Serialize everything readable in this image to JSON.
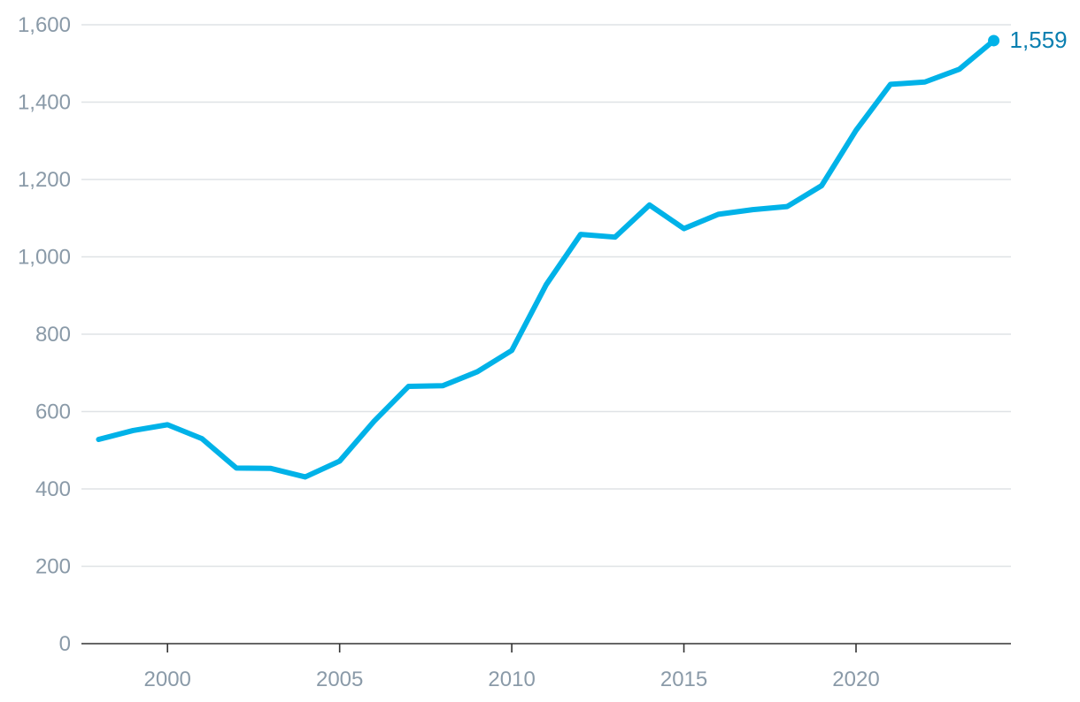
{
  "chart_data": {
    "type": "line",
    "title": "",
    "xlabel": "",
    "ylabel": "",
    "xlim": [
      1997.5,
      2024.5
    ],
    "ylim": [
      0,
      1600
    ],
    "y_ticks": [
      0,
      200,
      400,
      600,
      800,
      1000,
      1200,
      1400,
      1600
    ],
    "y_tick_labels": [
      "0",
      "200",
      "400",
      "600",
      "800",
      "1,000",
      "1,200",
      "1,400",
      "1,600"
    ],
    "x_ticks": [
      2000,
      2005,
      2010,
      2015,
      2020
    ],
    "x_tick_labels": [
      "2000",
      "2005",
      "2010",
      "2015",
      "2020"
    ],
    "grid": true,
    "line_color": "#00b2e8",
    "label_color": "#0a7fb0",
    "series": [
      {
        "x": [
          1998,
          1999,
          2000,
          2001,
          2002,
          2003,
          2004,
          2005,
          2006,
          2007,
          2008,
          2009,
          2010,
          2011,
          2012,
          2013,
          2014,
          2015,
          2016,
          2017,
          2018,
          2019,
          2020,
          2021,
          2022,
          2023,
          2024
        ],
        "values": [
          528,
          551,
          566,
          530,
          454,
          453,
          431,
          472,
          575,
          665,
          667,
          703,
          758,
          928,
          1058,
          1051,
          1134,
          1073,
          1110,
          1122,
          1130,
          1184,
          1327,
          1446,
          1452,
          1485,
          1559
        ]
      }
    ],
    "end_label": "1,559"
  }
}
